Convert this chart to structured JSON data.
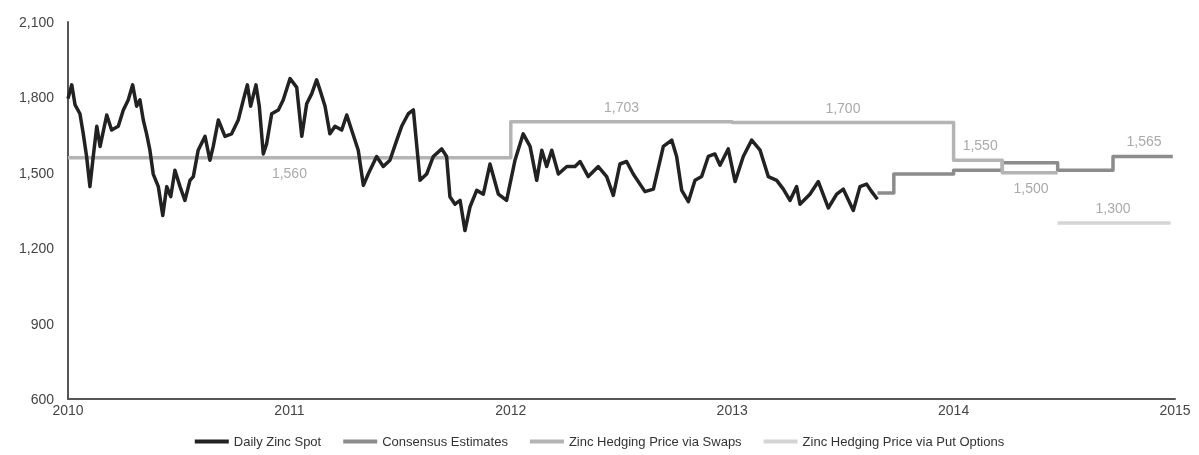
{
  "chart_data": {
    "type": "line",
    "xlim": [
      2010,
      2015
    ],
    "xticks": [
      2010,
      2011,
      2012,
      2013,
      2014,
      2015
    ],
    "ylim": [
      600,
      2100
    ],
    "yticks": [
      {
        "value": 600,
        "label": "600"
      },
      {
        "value": 900,
        "label": "900"
      },
      {
        "value": 1200,
        "label": "1,200"
      },
      {
        "value": 1500,
        "label": "1,500"
      },
      {
        "value": 1800,
        "label": "1,800"
      },
      {
        "value": 2100,
        "label": "2,100"
      }
    ],
    "grid": false,
    "legend": "bottom",
    "marker": "none",
    "line_style": "solid",
    "series": [
      {
        "name": "Daily Zinc Spot",
        "color": "#222222",
        "x": [
          2010.0,
          2010.017,
          2010.032,
          2010.054,
          2010.069,
          2010.084,
          2010.099,
          2010.114,
          2010.13,
          2010.145,
          2010.175,
          2010.197,
          2010.227,
          2010.25,
          2010.272,
          2010.292,
          2010.31,
          2010.325,
          2010.34,
          2010.355,
          2010.37,
          2010.385,
          2010.408,
          2010.428,
          2010.446,
          2010.464,
          2010.483,
          2010.506,
          2010.528,
          2010.551,
          2010.566,
          2010.588,
          2010.619,
          2010.641,
          2010.656,
          2010.679,
          2010.709,
          2010.739,
          2010.769,
          2010.792,
          2010.81,
          2010.825,
          2010.849,
          2010.864,
          2010.882,
          2010.897,
          2010.92,
          2010.95,
          2010.972,
          2011.003,
          2011.033,
          2011.056,
          2011.078,
          2011.101,
          2011.123,
          2011.138,
          2011.161,
          2011.183,
          2011.206,
          2011.236,
          2011.259,
          2011.281,
          2011.311,
          2011.334,
          2011.356,
          2011.394,
          2011.424,
          2011.454,
          2011.485,
          2011.507,
          2011.537,
          2011.56,
          2011.59,
          2011.62,
          2011.65,
          2011.688,
          2011.71,
          2011.725,
          2011.748,
          2011.771,
          2011.793,
          2011.816,
          2011.846,
          2011.876,
          2011.906,
          2011.944,
          2011.981,
          2012.019,
          2012.056,
          2012.087,
          2012.117,
          2012.14,
          2012.162,
          2012.185,
          2012.215,
          2012.253,
          2012.29,
          2012.313,
          2012.35,
          2012.395,
          2012.433,
          2012.463,
          2012.493,
          2012.523,
          2012.553,
          2012.606,
          2012.644,
          2012.689,
          2012.727,
          2012.749,
          2012.772,
          2012.802,
          2012.832,
          2012.862,
          2012.892,
          2012.922,
          2012.945,
          2012.982,
          2013.013,
          2013.05,
          2013.088,
          2013.126,
          2013.163,
          2013.201,
          2013.231,
          2013.261,
          2013.291,
          2013.306,
          2013.351,
          2013.389,
          2013.434,
          2013.472,
          2013.502,
          2013.547,
          2013.577,
          2013.607,
          2013.63,
          2013.656
        ],
        "values": [
          1795,
          1850,
          1770,
          1735,
          1655,
          1565,
          1445,
          1565,
          1685,
          1605,
          1730,
          1670,
          1685,
          1750,
          1790,
          1850,
          1765,
          1790,
          1710,
          1655,
          1590,
          1495,
          1445,
          1330,
          1445,
          1405,
          1510,
          1445,
          1390,
          1470,
          1485,
          1590,
          1645,
          1550,
          1605,
          1710,
          1645,
          1655,
          1710,
          1790,
          1850,
          1765,
          1850,
          1765,
          1575,
          1615,
          1735,
          1750,
          1790,
          1875,
          1840,
          1645,
          1775,
          1815,
          1870,
          1830,
          1765,
          1655,
          1685,
          1670,
          1730,
          1670,
          1590,
          1450,
          1495,
          1565,
          1525,
          1550,
          1630,
          1685,
          1735,
          1750,
          1470,
          1495,
          1565,
          1595,
          1565,
          1405,
          1375,
          1390,
          1270,
          1365,
          1430,
          1415,
          1535,
          1415,
          1390,
          1550,
          1655,
          1605,
          1470,
          1590,
          1525,
          1590,
          1495,
          1525,
          1525,
          1545,
          1485,
          1525,
          1485,
          1410,
          1535,
          1545,
          1495,
          1425,
          1435,
          1605,
          1630,
          1565,
          1430,
          1385,
          1470,
          1485,
          1565,
          1575,
          1530,
          1595,
          1465,
          1565,
          1630,
          1590,
          1485,
          1470,
          1435,
          1390,
          1445,
          1375,
          1415,
          1465,
          1360,
          1415,
          1435,
          1350,
          1445,
          1455,
          1425,
          1395
        ]
      },
      {
        "name": "Consensus Estimates",
        "color": "#8c8c8c",
        "type": "step",
        "x": [
          2013.656,
          2013.73,
          2014.0,
          2014.22,
          2014.47,
          2014.72,
          2014.99
        ],
        "values": [
          1420,
          1495,
          1510,
          1540,
          1510,
          1565,
          1565
        ]
      },
      {
        "name": "Zinc Hedging Price via Swaps",
        "color": "#b4b4b4",
        "type": "step",
        "x": [
          2010,
          2012,
          2013,
          2014,
          2014.22,
          2014.47
        ],
        "values": [
          1560,
          1703,
          1700,
          1550,
          1500,
          1500
        ]
      },
      {
        "name": "Zinc Hedging Price via Put Options",
        "color": "#d4d4d4",
        "type": "step",
        "x": [
          2014.47,
          2014.98
        ],
        "values": [
          1300,
          1300
        ]
      }
    ],
    "annotations": [
      {
        "text": "1,560",
        "x": 2011.0,
        "y": 1560
      },
      {
        "text": "1,703",
        "x": 2012.5,
        "y": 1703
      },
      {
        "text": "1,700",
        "x": 2013.5,
        "y": 1700
      },
      {
        "text": "1,550",
        "x": 2014.12,
        "y": 1550
      },
      {
        "text": "1,500",
        "x": 2014.35,
        "y": 1500
      },
      {
        "text": "1,565",
        "x": 2014.86,
        "y": 1565
      },
      {
        "text": "1,300",
        "x": 2014.72,
        "y": 1300
      }
    ]
  }
}
